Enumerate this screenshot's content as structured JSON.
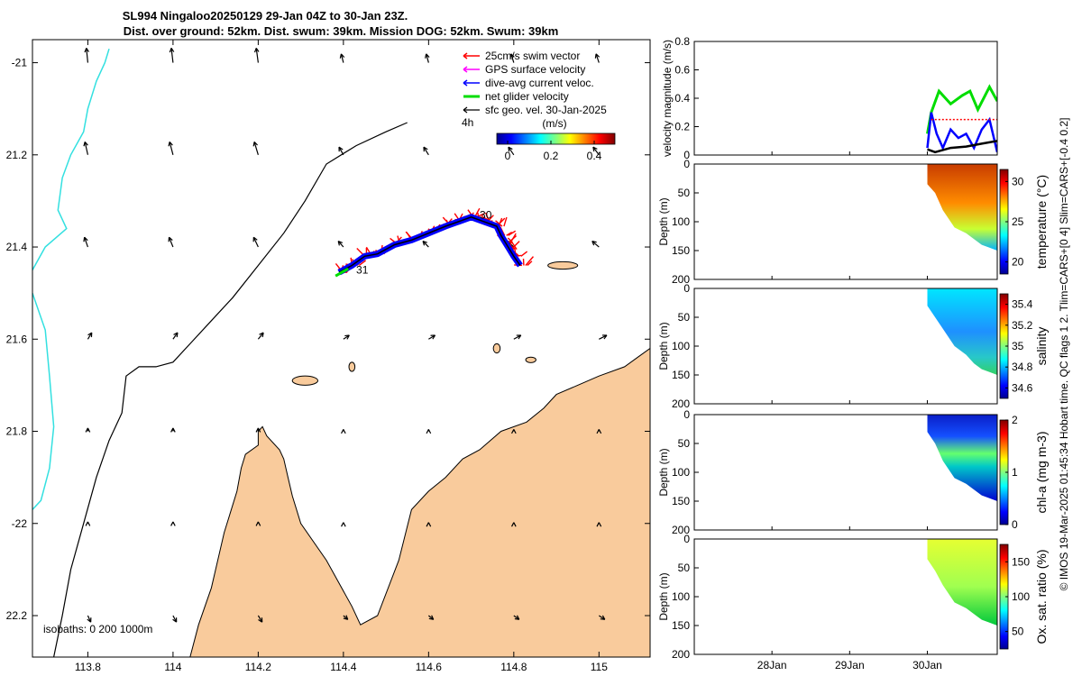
{
  "figure": {
    "title_line1": "SL994 Ningaloo20250129 29-Jan 04Z to 30-Jan 23Z.",
    "title_line2": "Dist. over ground: 52km. Dist. swum: 39km. Mission DOG: 52km. Swum: 39km",
    "side_credit": "© IMOS 19-Mar-2025 01:45:34 Hobart time. QC flags 1  2. Tlim=CARS+[0 4] Slim=CARS+[-0.4 0.2]",
    "colors": {
      "land": "#f9cb9c",
      "coast": "#000000",
      "isobath_shallow": "#33e0e0",
      "isobath_deep": "#000000",
      "swim_vector": "#ff0000",
      "dive_avg": "#0000ff",
      "net_velocity": "#00dd00",
      "sfc_geo": "#000000",
      "gps": "#ff00ff"
    }
  },
  "chart_data": [
    {
      "id": "map",
      "type": "scatter",
      "title": "SL994 Ningaloo20250129 track map",
      "xlabel": "",
      "ylabel": "",
      "xlim": [
        113.67,
        115.12
      ],
      "ylim": [
        -22.29,
        -20.95
      ],
      "xticks": [
        113.8,
        114,
        114.2,
        114.4,
        114.6,
        114.8,
        115
      ],
      "xtick_labels": [
        "113.8",
        "114",
        "114.2",
        "114.4",
        "114.6",
        "114.8",
        "115"
      ],
      "yticks": [
        -21,
        -21.2,
        -21.4,
        -21.6,
        -21.8,
        -22,
        -22.2
      ],
      "ytick_labels": [
        "-21",
        "21.2",
        "21.4",
        "21.6",
        "21.8",
        "-22",
        "22.2"
      ],
      "legend": {
        "placement": "top-right",
        "entries": [
          "25cm/s swim vector",
          "GPS surface velocity",
          "dive-avg current veloc.",
          "net glider velocity",
          "sfc geo. vel. 30-Jan-2025"
        ],
        "extra": "4h"
      },
      "velocity_colorbar": {
        "label": "(m/s)",
        "ticks": [
          0,
          0.2,
          0.4
        ],
        "tick_labels": [
          "0",
          "0.2",
          "0.4"
        ]
      },
      "isobaths_note": "isobaths: 0   200  1000m",
      "track_labels": [
        {
          "text": "30",
          "lon": 114.72,
          "lat": -21.33
        },
        {
          "text": "31",
          "lon": 114.43,
          "lat": -21.45
        }
      ],
      "track": {
        "lon": [
          114.39,
          114.42,
          114.45,
          114.48,
          114.52,
          114.56,
          114.6,
          114.64,
          114.67,
          114.7,
          114.73,
          114.76,
          114.77,
          114.78,
          114.79,
          114.8,
          114.815
        ],
        "lat": [
          -21.455,
          -21.44,
          -21.42,
          -21.415,
          -21.395,
          -21.385,
          -21.37,
          -21.355,
          -21.345,
          -21.335,
          -21.345,
          -21.355,
          -21.375,
          -21.39,
          -21.405,
          -21.42,
          -21.44
        ]
      },
      "isobath_1000": {
        "lon": [
          113.72,
          113.74,
          113.76,
          113.79,
          113.82,
          113.85,
          113.88,
          113.89,
          113.92,
          113.96,
          114.0,
          114.04,
          114.09,
          114.14,
          114.2,
          114.26,
          114.31,
          114.36,
          114.43,
          114.5,
          114.55
        ],
        "lat": [
          -22.29,
          -22.2,
          -22.1,
          -22.0,
          -21.9,
          -21.82,
          -21.76,
          -21.68,
          -21.66,
          -21.66,
          -21.65,
          -21.61,
          -21.56,
          -21.51,
          -21.44,
          -21.37,
          -21.3,
          -21.22,
          -21.18,
          -21.15,
          -21.13
        ]
      },
      "isobath_200": {
        "lon": [
          113.85,
          113.84,
          113.82,
          113.8,
          113.79,
          113.76,
          113.74,
          113.73,
          113.75,
          113.7,
          113.67
        ],
        "lat": [
          -20.97,
          -21.0,
          -21.04,
          -21.1,
          -21.15,
          -21.2,
          -21.25,
          -21.32,
          -21.36,
          -21.4,
          -21.45
        ]
      },
      "isobath_200_lower": {
        "lon": [
          113.67,
          113.7,
          113.71,
          113.72,
          113.71,
          113.69,
          113.67
        ],
        "lat": [
          -21.5,
          -21.58,
          -21.68,
          -21.79,
          -21.88,
          -21.95,
          -21.97
        ]
      },
      "geo_vector_grid": {
        "lon": [
          113.8,
          114.0,
          114.2,
          114.4,
          114.6,
          114.8,
          115.0
        ],
        "lat": [
          -21.0,
          -21.2,
          -21.4,
          -21.6,
          -21.8,
          -22.0,
          -22.2
        ],
        "u_rel": [
          -0.15,
          -0.3,
          -0.35,
          0.4,
          0.0,
          0.0,
          0.3
        ],
        "v_rel": [
          -0.9,
          -0.8,
          -0.6,
          -0.4,
          -0.2,
          -0.1,
          0.4
        ]
      },
      "land_main": {
        "lon": [
          114.04,
          114.06,
          114.09,
          114.12,
          114.15,
          114.16,
          114.17,
          114.2,
          114.2,
          114.21,
          114.22,
          114.25,
          114.26,
          114.27,
          114.28,
          114.3,
          114.36,
          114.42,
          114.44,
          114.48,
          114.53,
          114.56,
          114.6,
          114.64,
          114.68,
          114.72,
          114.77,
          114.83,
          114.87,
          114.9,
          114.95,
          115.0,
          115.06,
          115.09,
          115.12,
          115.12,
          114.04
        ],
        "lat": [
          -22.29,
          -22.22,
          -22.14,
          -22.02,
          -21.93,
          -21.88,
          -21.85,
          -21.83,
          -21.8,
          -21.79,
          -21.81,
          -21.84,
          -21.86,
          -21.9,
          -21.94,
          -22.0,
          -22.08,
          -22.18,
          -22.22,
          -22.2,
          -22.08,
          -21.97,
          -21.93,
          -21.9,
          -21.86,
          -21.84,
          -21.8,
          -21.78,
          -21.75,
          -21.72,
          -21.7,
          -21.68,
          -21.66,
          -21.64,
          -21.62,
          -22.29,
          -22.29
        ]
      },
      "islands": [
        {
          "lon": 114.915,
          "lat": -21.44,
          "rx_deg": 0.035,
          "ry_deg": 0.008
        },
        {
          "lon": 114.31,
          "lat": -21.69,
          "rx_deg": 0.03,
          "ry_deg": 0.01
        },
        {
          "lon": 114.42,
          "lat": -21.66,
          "rx_deg": 0.007,
          "ry_deg": 0.01
        },
        {
          "lon": 114.84,
          "lat": -21.645,
          "rx_deg": 0.012,
          "ry_deg": 0.006
        },
        {
          "lon": 114.76,
          "lat": -21.62,
          "rx_deg": 0.008,
          "ry_deg": 0.01
        }
      ]
    },
    {
      "id": "velocity",
      "type": "line",
      "ylabel": "velocity magnitude (m/s)",
      "ylim": [
        0,
        0.8
      ],
      "yticks": [
        0,
        0.2,
        0.4,
        0.6,
        0.8
      ],
      "ytick_labels": [
        "0",
        "0.2",
        "0.4",
        "0.6",
        "0.8"
      ],
      "xlim_days": [
        0,
        3.9
      ],
      "series": [
        {
          "name": "net glider velocity",
          "x": [
            3.0,
            3.05,
            3.15,
            3.3,
            3.45,
            3.55,
            3.65,
            3.8,
            3.9
          ],
          "values": [
            0.15,
            0.3,
            0.45,
            0.36,
            0.42,
            0.45,
            0.32,
            0.48,
            0.38
          ]
        },
        {
          "name": "dive-avg current veloc.",
          "x": [
            3.0,
            3.05,
            3.12,
            3.2,
            3.3,
            3.4,
            3.5,
            3.6,
            3.7,
            3.8,
            3.9
          ],
          "values": [
            0.05,
            0.3,
            0.15,
            0.05,
            0.18,
            0.12,
            0.15,
            0.05,
            0.18,
            0.25,
            0.02
          ]
        },
        {
          "name": "25cm/s swim vector",
          "x": [
            3.05,
            3.9
          ],
          "values": [
            0.25,
            0.25
          ]
        },
        {
          "name": "sfc geo. vel. 30-Jan-2025",
          "x": [
            3.0,
            3.1,
            3.3,
            3.5,
            3.7,
            3.9
          ],
          "values": [
            0.04,
            0.02,
            0.05,
            0.06,
            0.08,
            0.1
          ]
        }
      ]
    },
    {
      "id": "temperature",
      "type": "heatmap",
      "ylabel": "Depth (m)",
      "colorbar_label": "temperature (°C)",
      "colorbar_ticks": [
        20,
        25,
        30
      ],
      "colorbar_tick_labels": [
        "20",
        "25",
        "30"
      ],
      "colorbar_range": [
        18.5,
        31.5
      ],
      "colormap": "jet",
      "ylim": [
        0,
        200
      ],
      "yticks": [
        0,
        50,
        100,
        150,
        200
      ],
      "ytick_labels": [
        "0",
        "50",
        "100",
        "150",
        "200"
      ],
      "surface_value": 29,
      "bottom_value": 20.5,
      "bottom_depth": {
        "x": [
          3.0,
          3.1,
          3.2,
          3.35,
          3.5,
          3.6,
          3.7,
          3.8,
          3.9
        ],
        "depth": [
          35,
          50,
          80,
          110,
          120,
          130,
          140,
          145,
          150
        ]
      }
    },
    {
      "id": "salinity",
      "type": "heatmap",
      "ylabel": "Depth (m)",
      "colorbar_label": "salinity",
      "colorbar_ticks": [
        34.6,
        34.8,
        35,
        35.2,
        35.4
      ],
      "colorbar_tick_labels": [
        "34.6",
        "34.8",
        "35",
        "35.2",
        "35.4"
      ],
      "colorbar_range": [
        34.5,
        35.5
      ],
      "colormap": "jet",
      "ylim": [
        0,
        200
      ],
      "yticks": [
        0,
        50,
        100,
        150,
        200
      ],
      "ytick_labels": [
        "0",
        "50",
        "100",
        "150",
        "200"
      ],
      "surface_value": 34.82,
      "bottom_value": 34.95,
      "bottom_depth": {
        "x": [
          3.0,
          3.1,
          3.2,
          3.35,
          3.5,
          3.6,
          3.7,
          3.8,
          3.9
        ],
        "depth": [
          30,
          50,
          70,
          100,
          115,
          130,
          140,
          145,
          150
        ]
      }
    },
    {
      "id": "chla",
      "type": "heatmap",
      "ylabel": "Depth (m)",
      "colorbar_label": "chl-a (mg m-3)",
      "colorbar_ticks": [
        0,
        1,
        2
      ],
      "colorbar_tick_labels": [
        "0",
        "1",
        "2"
      ],
      "colorbar_range": [
        0,
        2
      ],
      "colormap": "jet",
      "ylim": [
        0,
        200
      ],
      "yticks": [
        0,
        50,
        100,
        150,
        200
      ],
      "ytick_labels": [
        "0",
        "50",
        "100",
        "150",
        "200"
      ],
      "surface_value": 0.25,
      "bottom_value": 0.35,
      "max_layer_depth": 65,
      "max_layer_value": 1.2,
      "bottom_depth": {
        "x": [
          3.0,
          3.1,
          3.2,
          3.35,
          3.5,
          3.6,
          3.7,
          3.8,
          3.9
        ],
        "depth": [
          30,
          50,
          80,
          110,
          120,
          130,
          140,
          145,
          150
        ]
      }
    },
    {
      "id": "oxygen",
      "type": "heatmap",
      "ylabel": "Depth (m)",
      "colorbar_label": "Ox. sat. ratio (%)",
      "colorbar_ticks": [
        50,
        100,
        150
      ],
      "colorbar_tick_labels": [
        "50",
        "100",
        "150"
      ],
      "colorbar_range": [
        25,
        175
      ],
      "colormap": "jet",
      "ylim": [
        0,
        200
      ],
      "yticks": [
        0,
        50,
        100,
        150,
        200
      ],
      "ytick_labels": [
        "0",
        "50",
        "100",
        "150",
        "200"
      ],
      "surface_value": 110,
      "bottom_value": 95,
      "bottom_depth": {
        "x": [
          3.0,
          3.1,
          3.2,
          3.35,
          3.5,
          3.6,
          3.7,
          3.8,
          3.9
        ],
        "depth": [
          35,
          55,
          80,
          110,
          120,
          130,
          140,
          145,
          150
        ]
      }
    },
    {
      "id": "time_axis",
      "type": "line",
      "xlim_days": [
        0,
        3.9
      ],
      "xticks_days": [
        1,
        2,
        3
      ],
      "xtick_labels": [
        "28Jan",
        "29Jan",
        "30Jan"
      ]
    }
  ]
}
